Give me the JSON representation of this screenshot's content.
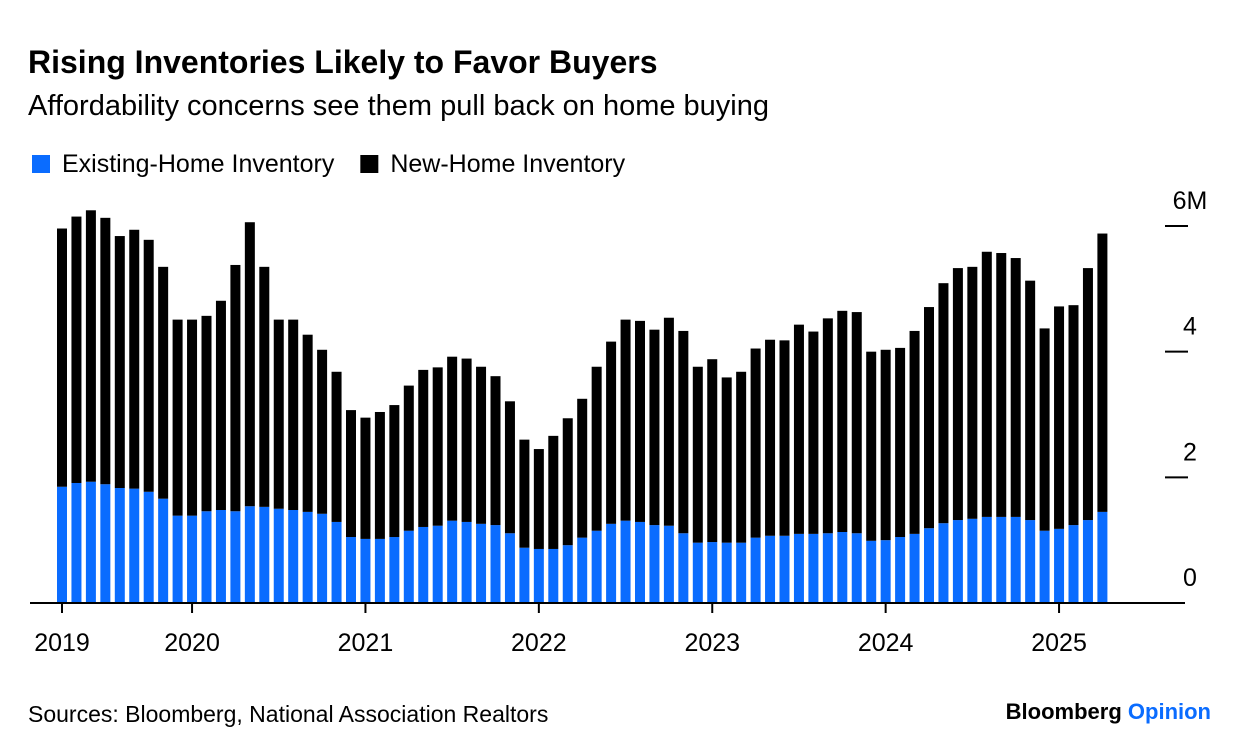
{
  "chart_data": {
    "type": "stacked_bar",
    "title": "Rising Inventories Likely to Favor Buyers",
    "subtitle": "Affordability concerns see them pull back on home buying",
    "source": "Sources: Bloomberg, National Association Realtors",
    "brand": {
      "name": "Bloomberg",
      "section": "Opinion"
    },
    "categories": [
      "2019",
      null,
      null,
      null,
      null,
      null,
      null,
      null,
      null,
      "2020",
      null,
      null,
      null,
      null,
      null,
      null,
      null,
      null,
      null,
      null,
      null,
      "2021",
      null,
      null,
      null,
      null,
      null,
      null,
      null,
      null,
      null,
      null,
      null,
      "2022",
      null,
      null,
      null,
      null,
      null,
      null,
      null,
      null,
      null,
      null,
      null,
      "2023",
      null,
      null,
      null,
      null,
      null,
      null,
      null,
      null,
      null,
      null,
      null,
      "2024",
      null,
      null,
      null,
      null,
      null,
      null,
      null,
      null,
      null,
      null,
      null,
      "2025",
      null,
      null,
      null
    ],
    "series": [
      {
        "name": "Existing-Home Inventory",
        "color": "#0a6cff",
        "values": [
          1.85,
          1.91,
          1.93,
          1.89,
          1.83,
          1.82,
          1.77,
          1.66,
          1.39,
          1.39,
          1.46,
          1.48,
          1.46,
          1.54,
          1.53,
          1.5,
          1.48,
          1.45,
          1.42,
          1.29,
          1.05,
          1.02,
          1.02,
          1.05,
          1.15,
          1.21,
          1.23,
          1.31,
          1.29,
          1.26,
          1.24,
          1.11,
          0.88,
          0.86,
          0.86,
          0.92,
          1.04,
          1.15,
          1.26,
          1.31,
          1.29,
          1.24,
          1.23,
          1.11,
          0.96,
          0.97,
          0.96,
          0.96,
          1.04,
          1.07,
          1.07,
          1.1,
          1.1,
          1.11,
          1.13,
          1.11,
          0.99,
          1.0,
          1.05,
          1.1,
          1.19,
          1.27,
          1.32,
          1.34,
          1.37,
          1.37,
          1.37,
          1.32,
          1.15,
          1.18,
          1.24,
          1.32,
          1.45
        ]
      },
      {
        "name": "New-Home Inventory",
        "color": "#000000",
        "values": [
          4.11,
          4.24,
          4.32,
          4.24,
          4.01,
          4.12,
          4.01,
          3.69,
          3.12,
          3.12,
          3.11,
          3.33,
          3.92,
          4.52,
          3.82,
          3.01,
          3.03,
          2.82,
          2.61,
          2.39,
          2.02,
          1.93,
          2.02,
          2.1,
          2.31,
          2.5,
          2.52,
          2.61,
          2.6,
          2.5,
          2.37,
          2.1,
          1.72,
          1.59,
          1.8,
          2.02,
          2.21,
          2.61,
          2.9,
          3.2,
          3.2,
          3.11,
          3.31,
          3.22,
          2.8,
          2.91,
          2.63,
          2.72,
          3.01,
          3.12,
          3.11,
          3.33,
          3.22,
          3.42,
          3.52,
          3.52,
          3.01,
          3.03,
          3.01,
          3.23,
          3.52,
          3.82,
          4.01,
          4.01,
          4.22,
          4.2,
          4.12,
          3.81,
          3.22,
          3.54,
          3.5,
          4.01,
          4.43
        ]
      }
    ],
    "ylim": [
      0,
      6
    ],
    "yticks": [
      0,
      2,
      4,
      {
        "value": 6,
        "label": "6M"
      }
    ]
  }
}
